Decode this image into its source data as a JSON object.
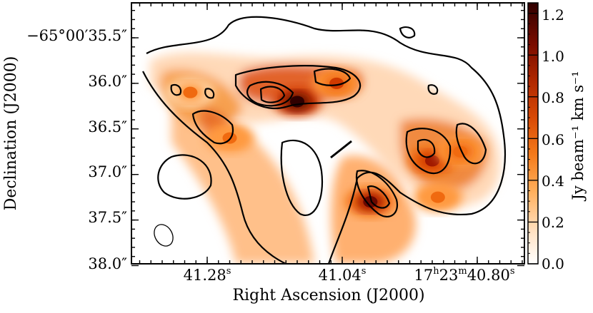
{
  "chart_data": {
    "type": "heatmap",
    "title": "",
    "xlabel": "Right Ascension (J2000)",
    "ylabel": "Declination (J2000)",
    "x_ticks": [
      "41.28",
      "41.04",
      "17",
      "23",
      "40.80"
    ],
    "x_tick_values_s": [
      41.28,
      41.04,
      40.8
    ],
    "x_tick_units": {
      "h": "h",
      "m": "m",
      "s": "s"
    },
    "y_ticks": [
      "−65°00′35.5″",
      "36.0″",
      "36.5″",
      "37.0″",
      "37.5″",
      "38.0″"
    ],
    "y_tick_values_arcsec": [
      35.5,
      36.0,
      36.5,
      37.0,
      37.5,
      38.0
    ],
    "colorbar": {
      "label": "Jy beam⁻¹ km s⁻¹",
      "ticks": [
        "0.0",
        "0.2",
        "0.4",
        "0.6",
        "0.8",
        "1.0",
        "1.2"
      ],
      "tick_values": [
        0.0,
        0.2,
        0.4,
        0.6,
        0.8,
        1.0,
        1.2
      ],
      "range": [
        0.0,
        1.25
      ],
      "colormap": "gist_heat_r"
    },
    "emission_peaks": [
      {
        "ra_s": 41.12,
        "dec_arcsec": 36.2,
        "value": 1.25
      },
      {
        "ra_s": 41.05,
        "dec_arcsec": 36.0,
        "value": 0.75
      },
      {
        "ra_s": 40.99,
        "dec_arcsec": 37.3,
        "value": 1.1
      },
      {
        "ra_s": 40.88,
        "dec_arcsec": 36.85,
        "value": 0.85
      },
      {
        "ra_s": 40.83,
        "dec_arcsec": 36.75,
        "value": 0.6
      },
      {
        "ra_s": 41.24,
        "dec_arcsec": 36.6,
        "value": 0.55
      },
      {
        "ra_s": 41.31,
        "dec_arcsec": 36.1,
        "value": 0.45
      },
      {
        "ra_s": 40.87,
        "dec_arcsec": 37.25,
        "value": 0.5
      }
    ],
    "contour_levels": [
      0.1,
      0.3,
      0.5,
      0.7,
      0.9,
      1.1
    ],
    "beam": {
      "type": "ellipse",
      "location": "bottom-left"
    }
  },
  "colors": {
    "frame": "#000000",
    "contour": "#000000",
    "colormap_stops": [
      "#ffffff",
      "#ffd9b0",
      "#ff9a40",
      "#f06a10",
      "#d03a00",
      "#a01800",
      "#6a0800",
      "#300000"
    ]
  }
}
